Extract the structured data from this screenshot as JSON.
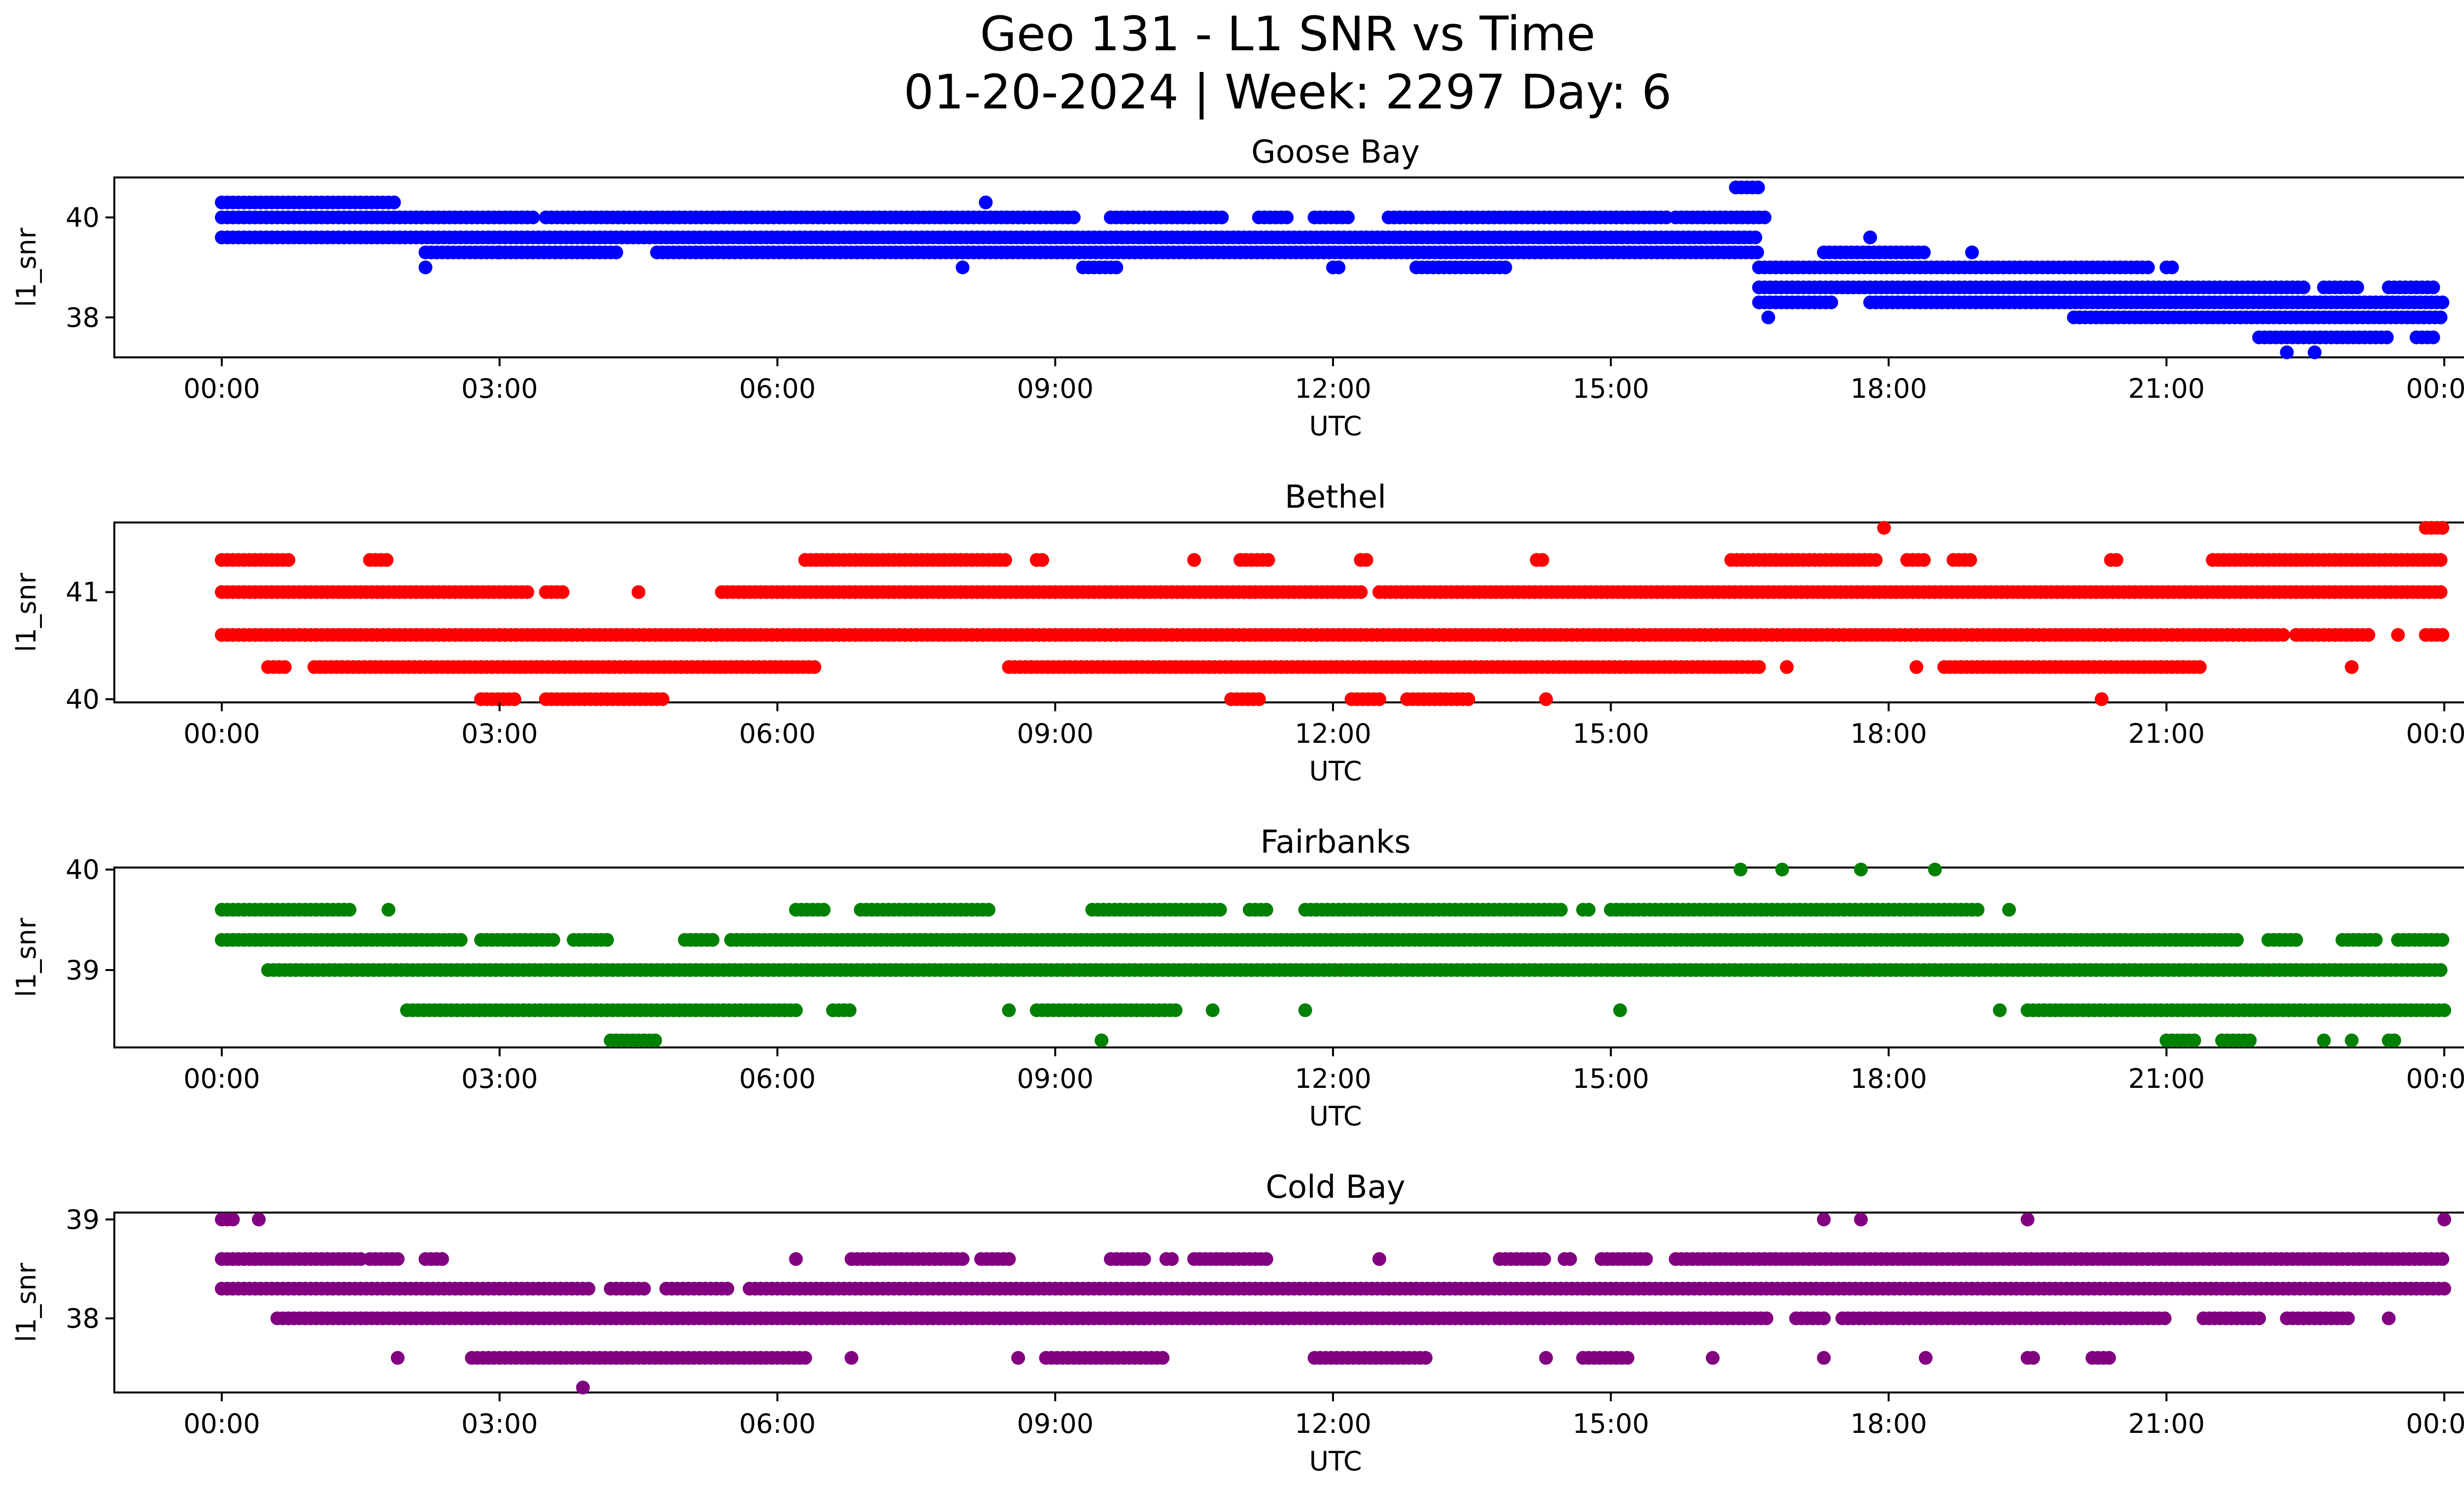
{
  "title_line1": "Geo 131 - L1 SNR vs Time",
  "title_line2": "01-20-2024 | Week: 2297 Day: 6",
  "chart_data": [
    {
      "type": "scatter",
      "title": "Goose Bay",
      "xlabel": "UTC",
      "ylabel": "l1_snr",
      "color": "#0000ff",
      "xlim": [
        "00:00",
        "24:00"
      ],
      "ylim": [
        37.2,
        40.8
      ],
      "xticks": [
        "00:00",
        "03:00",
        "06:00",
        "09:00",
        "12:00",
        "15:00",
        "18:00",
        "21:00",
        "00:00"
      ],
      "yticks": [
        38,
        40
      ],
      "series": [
        {
          "values": [
            {
              "y": 40.3,
              "x": [
                [
                  0.0,
                  1.9
                ]
              ]
            },
            {
              "y": 40.0,
              "x": [
                [
                  0.0,
                  3.4
                ],
                [
                  3.5,
                  9.2
                ],
                [
                  9.6,
                  10.8
                ],
                [
                  11.2,
                  11.5
                ],
                [
                  11.8,
                  12.2
                ],
                [
                  12.6,
                  15.6
                ],
                [
                  15.7,
                  16.7
                ]
              ]
            },
            {
              "y": 39.6,
              "x": [
                [
                  0.0,
                  16.6
                ]
              ]
            },
            {
              "y": 39.3,
              "x": [
                [
                  2.2,
                  3.0
                ],
                [
                  3.0,
                  4.3
                ],
                [
                  4.7,
                  16.6
                ]
              ]
            },
            {
              "y": 40.6,
              "x": [
                [
                  16.35,
                  16.6
                ]
              ]
            },
            {
              "y": 39.0,
              "x": [
                [
                  2.2,
                  2.2
                ],
                [
                  8.0,
                  8.0
                ],
                [
                  9.3,
                  9.7
                ],
                [
                  12.0,
                  12.1
                ],
                [
                  12.9,
                  13.9
                ],
                [
                  16.6,
                  20.8
                ],
                [
                  21.0,
                  21.1
                ]
              ]
            },
            {
              "y": 38.6,
              "x": [
                [
                  16.6,
                  22.5
                ],
                [
                  22.7,
                  23.1
                ],
                [
                  23.4,
                  23.9
                ]
              ]
            },
            {
              "y": 38.3,
              "x": [
                [
                  16.6,
                  17.4
                ],
                [
                  17.8,
                  24.0
                ]
              ]
            },
            {
              "y": 38.0,
              "x": [
                [
                  16.7,
                  16.7
                ],
                [
                  20.0,
                  24.0
                ]
              ]
            },
            {
              "y": 37.6,
              "x": [
                [
                  22.0,
                  23.4
                ],
                [
                  23.7,
                  23.9
                ]
              ]
            },
            {
              "y": 37.3,
              "x": [
                [
                  22.3,
                  22.3
                ],
                [
                  22.6,
                  22.6
                ]
              ]
            },
            {
              "y": 39.3,
              "x": [
                [
                  8.0,
                  8.0
                ]
              ]
            },
            {
              "y": 40.3,
              "x": [
                [
                  8.25,
                  8.25
                ]
              ]
            },
            {
              "y": 39.6,
              "x": [
                [
                  17.8,
                  17.8
                ]
              ]
            },
            {
              "y": 39.3,
              "x": [
                [
                  17.3,
                  18.4
                ],
                [
                  18.9,
                  18.9
                ]
              ]
            }
          ]
        }
      ]
    },
    {
      "type": "scatter",
      "title": "Bethel",
      "xlabel": "UTC",
      "ylabel": "l1_snr",
      "color": "#ff0000",
      "xlim": [
        "00:00",
        "24:00"
      ],
      "ylim": [
        39.97,
        41.65
      ],
      "xticks": [
        "00:00",
        "03:00",
        "06:00",
        "09:00",
        "12:00",
        "15:00",
        "18:00",
        "21:00",
        "00:00"
      ],
      "yticks": [
        40,
        41
      ],
      "series": [
        {
          "values": [
            {
              "y": 41.3,
              "x": [
                [
                  0.0,
                  0.75
                ],
                [
                  1.6,
                  1.8
                ],
                [
                  6.3,
                  8.5
                ],
                [
                  8.8,
                  8.9
                ],
                [
                  10.5,
                  10.5
                ],
                [
                  11.0,
                  11.3
                ],
                [
                  12.3,
                  12.4
                ],
                [
                  14.2,
                  14.3
                ],
                [
                  16.3,
                  17.9
                ],
                [
                  18.2,
                  18.4
                ],
                [
                  18.7,
                  18.9
                ],
                [
                  20.4,
                  20.5
                ],
                [
                  21.5,
                  24.0
                ]
              ]
            },
            {
              "y": 41.0,
              "x": [
                [
                  0.0,
                  3.3
                ],
                [
                  3.5,
                  3.7
                ],
                [
                  4.5,
                  4.5
                ],
                [
                  5.4,
                  12.3
                ],
                [
                  12.5,
                  24.0
                ]
              ]
            },
            {
              "y": 40.6,
              "x": [
                [
                  0.0,
                  22.3
                ],
                [
                  22.4,
                  23.2
                ],
                [
                  23.5,
                  23.5
                ],
                [
                  23.8,
                  24.0
                ]
              ]
            },
            {
              "y": 40.3,
              "x": [
                [
                  0.5,
                  0.7
                ],
                [
                  1.0,
                  6.4
                ],
                [
                  8.5,
                  16.6
                ],
                [
                  16.9,
                  16.9
                ],
                [
                  18.3,
                  18.3
                ],
                [
                  18.6,
                  21.4
                ],
                [
                  23.0,
                  23.0
                ]
              ]
            },
            {
              "y": 40.0,
              "x": [
                [
                  2.8,
                  3.2
                ],
                [
                  3.5,
                  4.8
                ],
                [
                  10.9,
                  11.2
                ],
                [
                  12.2,
                  12.5
                ],
                [
                  12.8,
                  13.5
                ],
                [
                  14.3,
                  14.3
                ],
                [
                  20.3,
                  20.3
                ]
              ]
            },
            {
              "y": 41.6,
              "x": [
                [
                  17.95,
                  17.95
                ],
                [
                  23.8,
                  24.0
                ]
              ]
            }
          ]
        }
      ]
    },
    {
      "type": "scatter",
      "title": "Fairbanks",
      "xlabel": "UTC",
      "ylabel": "l1_snr",
      "color": "#008000",
      "xlim": [
        "00:00",
        "24:00"
      ],
      "ylim": [
        38.23,
        40.02
      ],
      "xticks": [
        "00:00",
        "03:00",
        "06:00",
        "09:00",
        "12:00",
        "15:00",
        "18:00",
        "21:00",
        "00:00"
      ],
      "yticks": [
        39,
        40
      ],
      "series": [
        {
          "values": [
            {
              "y": 40.0,
              "x": [
                [
                  16.4,
                  16.4
                ],
                [
                  16.85,
                  16.85
                ],
                [
                  17.7,
                  17.7
                ],
                [
                  18.5,
                  18.5
                ]
              ]
            },
            {
              "y": 39.6,
              "x": [
                [
                  0.0,
                  1.4
                ],
                [
                  1.8,
                  1.8
                ],
                [
                  6.2,
                  6.5
                ],
                [
                  6.9,
                  8.3
                ],
                [
                  9.4,
                  10.8
                ],
                [
                  11.1,
                  11.3
                ],
                [
                  11.7,
                  14.5
                ],
                [
                  14.7,
                  14.8
                ],
                [
                  15.0,
                  19.0
                ],
                [
                  19.3,
                  19.3
                ]
              ]
            },
            {
              "y": 39.3,
              "x": [
                [
                  0.0,
                  2.6
                ],
                [
                  2.8,
                  3.6
                ],
                [
                  3.8,
                  4.2
                ],
                [
                  5.0,
                  5.3
                ],
                [
                  5.5,
                  21.8
                ],
                [
                  22.1,
                  22.4
                ],
                [
                  22.9,
                  23.3
                ],
                [
                  23.5,
                  24.0
                ]
              ]
            },
            {
              "y": 39.0,
              "x": [
                [
                  0.5,
                  24.0
                ]
              ]
            },
            {
              "y": 38.6,
              "x": [
                [
                  2.0,
                  6.2
                ],
                [
                  6.6,
                  6.8
                ],
                [
                  8.5,
                  8.5
                ],
                [
                  8.8,
                  10.3
                ],
                [
                  10.7,
                  10.7
                ],
                [
                  11.7,
                  11.7
                ],
                [
                  15.1,
                  15.1
                ],
                [
                  19.2,
                  19.2
                ],
                [
                  19.5,
                  24.0
                ]
              ]
            },
            {
              "y": 38.3,
              "x": [
                [
                  4.2,
                  4.7
                ],
                [
                  9.5,
                  9.5
                ],
                [
                  21.0,
                  21.3
                ],
                [
                  21.6,
                  21.9
                ],
                [
                  22.7,
                  22.7
                ],
                [
                  23.0,
                  23.0
                ],
                [
                  23.4,
                  23.5
                ]
              ]
            }
          ]
        }
      ]
    },
    {
      "type": "scatter",
      "title": "Cold Bay",
      "xlabel": "UTC",
      "ylabel": "l1_snr",
      "color": "#800080",
      "xlim": [
        "00:00",
        "24:00"
      ],
      "ylim": [
        37.25,
        39.07
      ],
      "xticks": [
        "00:00",
        "03:00",
        "06:00",
        "09:00",
        "12:00",
        "15:00",
        "18:00",
        "21:00",
        "00:00"
      ],
      "yticks": [
        38,
        39
      ],
      "series": [
        {
          "values": [
            {
              "y": 39.0,
              "x": [
                [
                  0.0,
                  0.15
                ],
                [
                  0.4,
                  0.4
                ],
                [
                  17.3,
                  17.3
                ],
                [
                  17.7,
                  17.7
                ],
                [
                  19.5,
                  19.5
                ],
                [
                  24.0,
                  24.0
                ]
              ]
            },
            {
              "y": 38.6,
              "x": [
                [
                  0.0,
                  1.5
                ],
                [
                  1.6,
                  1.9
                ],
                [
                  2.2,
                  2.4
                ],
                [
                  6.2,
                  6.2
                ],
                [
                  6.8,
                  8.0
                ],
                [
                  8.2,
                  8.5
                ],
                [
                  9.6,
                  10.0
                ],
                [
                  10.2,
                  10.3
                ],
                [
                  10.5,
                  11.3
                ],
                [
                  12.5,
                  12.5
                ],
                [
                  13.8,
                  14.3
                ],
                [
                  14.5,
                  14.6
                ],
                [
                  14.9,
                  15.4
                ],
                [
                  15.7,
                  24.0
                ]
              ]
            },
            {
              "y": 38.3,
              "x": [
                [
                  0.0,
                  4.0
                ],
                [
                  4.2,
                  4.6
                ],
                [
                  4.8,
                  5.5
                ],
                [
                  5.7,
                  24.0
                ]
              ]
            },
            {
              "y": 38.0,
              "x": [
                [
                  0.6,
                  16.7
                ],
                [
                  17.0,
                  17.3
                ],
                [
                  17.5,
                  21.0
                ],
                [
                  21.4,
                  22.0
                ],
                [
                  22.3,
                  23.0
                ],
                [
                  23.4,
                  23.4
                ]
              ]
            },
            {
              "y": 37.6,
              "x": [
                [
                  1.9,
                  1.9
                ],
                [
                  2.7,
                  6.3
                ],
                [
                  6.8,
                  6.8
                ],
                [
                  8.6,
                  8.6
                ],
                [
                  8.9,
                  10.2
                ],
                [
                  11.8,
                  13.0
                ],
                [
                  14.3,
                  14.3
                ],
                [
                  14.7,
                  15.2
                ],
                [
                  16.1,
                  16.1
                ],
                [
                  17.3,
                  17.3
                ],
                [
                  18.4,
                  18.4
                ],
                [
                  19.5,
                  19.6
                ],
                [
                  20.2,
                  20.4
                ]
              ]
            },
            {
              "y": 37.3,
              "x": [
                [
                  3.9,
                  3.9
                ]
              ]
            }
          ]
        }
      ]
    }
  ]
}
